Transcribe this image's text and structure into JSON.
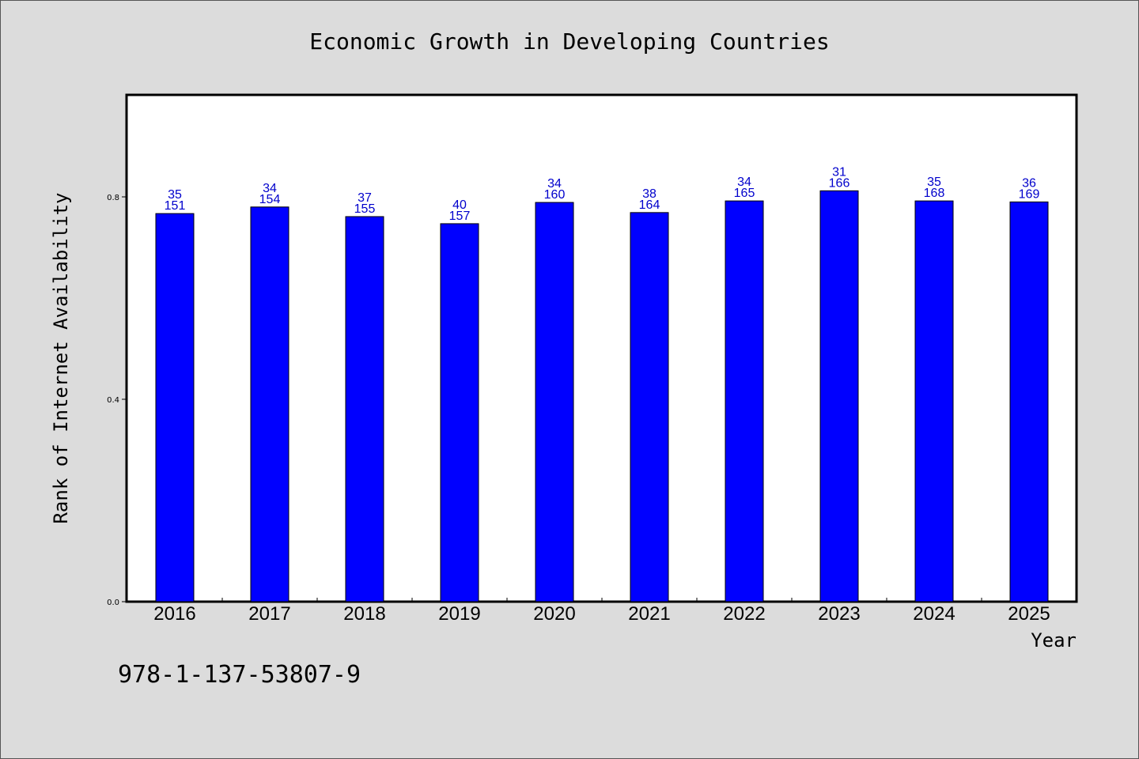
{
  "chart_data": {
    "type": "bar",
    "title": "Economic Growth in Developing Countries",
    "xlabel": "Year",
    "ylabel": "Rank of Internet Availability",
    "categories": [
      "2016",
      "2017",
      "2018",
      "2019",
      "2020",
      "2021",
      "2022",
      "2023",
      "2024",
      "2025"
    ],
    "values": [
      0.767,
      0.78,
      0.761,
      0.747,
      0.789,
      0.769,
      0.792,
      0.812,
      0.792,
      0.79
    ],
    "labels_top": [
      "35",
      "34",
      "37",
      "40",
      "34",
      "38",
      "34",
      "31",
      "35",
      "36"
    ],
    "labels_bottom": [
      "151",
      "154",
      "155",
      "157",
      "160",
      "164",
      "165",
      "166",
      "168",
      "169"
    ],
    "ylim": [
      0,
      1.0
    ],
    "yticks": [
      "0.0",
      "0.4",
      "0.8"
    ],
    "ytick_values": [
      0.0,
      0.4,
      0.8
    ],
    "grid": false,
    "legend": "none",
    "bar_color": "#0000ff",
    "label_color": "#0000cc"
  },
  "footnote": "978-1-137-53807-9"
}
